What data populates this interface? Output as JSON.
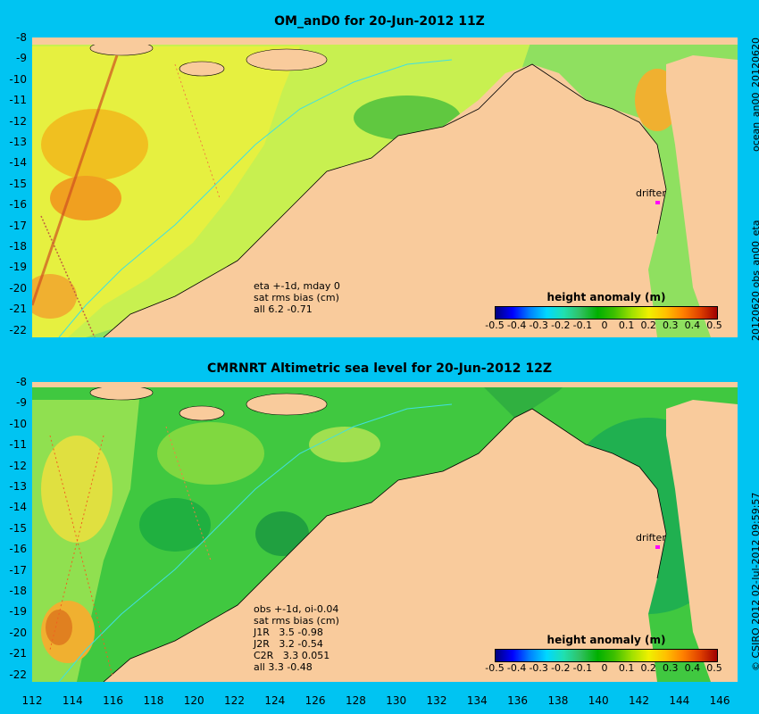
{
  "panel1": {
    "title": "OM_anD0 for 20-Jun-2012 11Z",
    "side_label": "20120620 obs_an00_eta",
    "side_label_top": "ocean_an00_20120620",
    "note": "eta +-1d, mday 0\nsat rms bias (cm)\nall 6.2 -0.71",
    "colorbar_title": "height anomaly (m)",
    "drifter_label": "drifter"
  },
  "panel2": {
    "title": "CMRNRT Altimetric sea level  for 20-Jun-2012 12Z",
    "side_label": "© CSIRO 2012  02-Jul-2012 09:59:57",
    "note": "obs +-1d, oi-0.04\nsat rms bias (cm)\nJ1R   3.5 -0.98\nJ2R   3.2 -0.54\nC2R   3.3 0.051\nall 3.3 -0.48",
    "colorbar_title": "height anomaly (m)",
    "drifter_label": "drifter"
  },
  "y_ticks": [
    "-8",
    "-9",
    "-10",
    "-11",
    "-12",
    "-13",
    "-14",
    "-15",
    "-16",
    "-17",
    "-18",
    "-19",
    "-20",
    "-21",
    "-22"
  ],
  "x_ticks": [
    "112",
    "114",
    "116",
    "118",
    "120",
    "122",
    "124",
    "126",
    "128",
    "130",
    "132",
    "134",
    "136",
    "138",
    "140",
    "142",
    "144",
    "146"
  ],
  "colorbar_ticks": [
    "-0.5",
    "-0.4",
    "-0.3",
    "-0.2",
    "-0.1",
    "0",
    "0.1",
    "0.2",
    "0.3",
    "0.4",
    "0.5"
  ],
  "map": {
    "lon_range": [
      112,
      147
    ],
    "lat_range": [
      -22.3,
      -8
    ],
    "land_color": "#f9cb9c",
    "colorbar_range": [
      -0.5,
      0.5
    ]
  }
}
